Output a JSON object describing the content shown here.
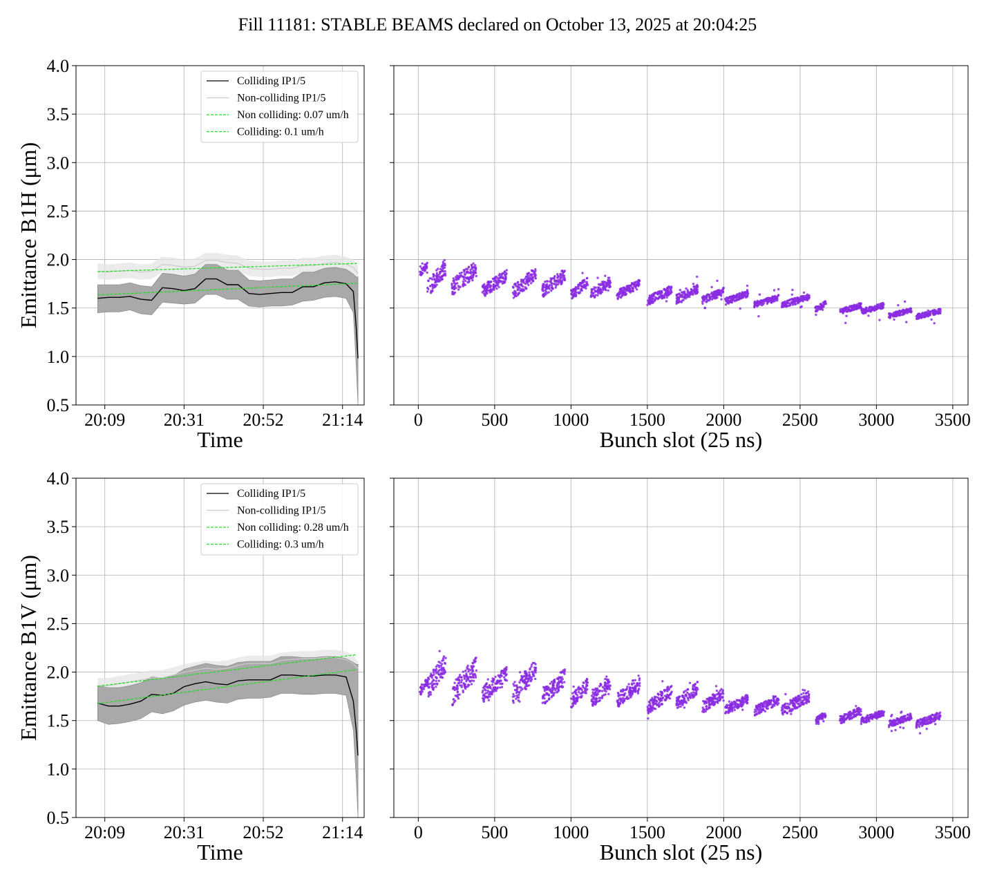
{
  "figure": {
    "title": "Fill 11181: STABLE BEAMS declared on October 13, 2025 at 20:04:25"
  },
  "colors": {
    "colliding": "#000000",
    "noncolliding": "#cccccc",
    "fit": "#22dd22",
    "band_colliding": "#a9a9a9",
    "band_noncolliding": "#e4e4e4",
    "scatter": "#8a2be2",
    "grid": "#b0b0b0"
  },
  "chart_data": [
    {
      "id": "b1h-time",
      "type": "line",
      "xlabel": "Time",
      "ylabel": "Emittance B1H (μm)",
      "ylim": [
        0.5,
        4.0
      ],
      "yticks": [
        "0.5",
        "1.0",
        "1.5",
        "2.0",
        "2.5",
        "3.0",
        "3.5",
        "4.0"
      ],
      "xticks": [
        "20:09",
        "20:31",
        "20:52",
        "21:14"
      ],
      "grid": true,
      "legend_placement": "top-right",
      "legend": [
        "Colliding IP1/5",
        "Non-colliding IP1/5",
        "Non colliding: 0.07 um/h",
        "Colliding: 0.1 um/h"
      ],
      "time_x": [
        0,
        3,
        6,
        9,
        12,
        15,
        18,
        21,
        24,
        27,
        30,
        33,
        36,
        39,
        42,
        45,
        48,
        51,
        54,
        57,
        60,
        63,
        66,
        69,
        71,
        71.8,
        72.3
      ],
      "colliding_mean": [
        1.6,
        1.61,
        1.61,
        1.62,
        1.59,
        1.58,
        1.71,
        1.7,
        1.68,
        1.7,
        1.8,
        1.8,
        1.74,
        1.74,
        1.65,
        1.64,
        1.65,
        1.66,
        1.66,
        1.72,
        1.72,
        1.76,
        1.77,
        1.75,
        1.67,
        1.3,
        0.98
      ],
      "colliding_band_low": [
        1.45,
        1.46,
        1.46,
        1.48,
        1.44,
        1.43,
        1.56,
        1.55,
        1.54,
        1.55,
        1.64,
        1.64,
        1.59,
        1.59,
        1.52,
        1.51,
        1.52,
        1.52,
        1.53,
        1.57,
        1.58,
        1.61,
        1.62,
        1.6,
        1.45,
        0.9,
        0.5
      ],
      "colliding_band_high": [
        1.74,
        1.74,
        1.74,
        1.76,
        1.73,
        1.72,
        1.86,
        1.85,
        1.83,
        1.85,
        1.95,
        1.95,
        1.89,
        1.89,
        1.79,
        1.78,
        1.79,
        1.8,
        1.8,
        1.87,
        1.87,
        1.91,
        1.92,
        1.9,
        1.85,
        1.82,
        1.82
      ],
      "noncolliding_mean": [
        1.88,
        1.87,
        1.88,
        1.89,
        1.87,
        1.88,
        1.95,
        1.94,
        1.92,
        1.93,
        1.99,
        1.99,
        1.97,
        1.96,
        1.91,
        1.9,
        1.9,
        1.91,
        1.91,
        1.94,
        1.94,
        1.96,
        1.97,
        1.95,
        1.92,
        1.88,
        1.85
      ],
      "noncolliding_band_low": [
        1.8,
        1.79,
        1.8,
        1.81,
        1.79,
        1.8,
        1.87,
        1.86,
        1.84,
        1.85,
        1.91,
        1.91,
        1.89,
        1.88,
        1.83,
        1.82,
        1.82,
        1.83,
        1.83,
        1.86,
        1.86,
        1.88,
        1.89,
        1.87,
        1.84,
        1.8,
        1.78
      ],
      "noncolliding_band_high": [
        1.96,
        1.95,
        1.96,
        1.97,
        1.95,
        1.96,
        2.03,
        2.02,
        2.0,
        2.01,
        2.07,
        2.07,
        2.05,
        2.04,
        1.99,
        1.98,
        1.98,
        1.99,
        1.99,
        2.02,
        2.02,
        2.04,
        2.05,
        2.03,
        2.0,
        1.96,
        1.93
      ],
      "fit_noncolliding": {
        "x": [
          0,
          72
        ],
        "y": [
          1.875,
          1.96
        ]
      },
      "fit_colliding": {
        "x": [
          0,
          72
        ],
        "y": [
          1.635,
          1.755
        ]
      }
    },
    {
      "id": "b1h-bunch",
      "type": "scatter",
      "xlabel": "Bunch slot (25 ns)",
      "ylabel": "",
      "xlim": [
        -160,
        3600
      ],
      "ylim": [
        0.5,
        4.0
      ],
      "xticks": [
        0,
        500,
        1000,
        1500,
        2000,
        2500,
        3000,
        3500
      ],
      "grid": true,
      "trains": [
        {
          "start": 10,
          "end": 60,
          "top": 1.96,
          "bot": 1.8
        },
        {
          "start": 60,
          "end": 180,
          "top": 1.96,
          "bot": 1.55
        },
        {
          "start": 220,
          "end": 380,
          "top": 1.95,
          "bot": 1.58
        },
        {
          "start": 420,
          "end": 580,
          "top": 1.86,
          "bot": 1.57
        },
        {
          "start": 620,
          "end": 770,
          "top": 1.88,
          "bot": 1.55
        },
        {
          "start": 810,
          "end": 960,
          "top": 1.87,
          "bot": 1.57
        },
        {
          "start": 1000,
          "end": 1110,
          "top": 1.79,
          "bot": 1.55
        },
        {
          "start": 1130,
          "end": 1260,
          "top": 1.8,
          "bot": 1.55
        },
        {
          "start": 1300,
          "end": 1450,
          "top": 1.77,
          "bot": 1.56
        },
        {
          "start": 1500,
          "end": 1660,
          "top": 1.71,
          "bot": 1.5
        },
        {
          "start": 1690,
          "end": 1830,
          "top": 1.72,
          "bot": 1.52
        },
        {
          "start": 1860,
          "end": 2000,
          "top": 1.69,
          "bot": 1.52
        },
        {
          "start": 2010,
          "end": 2160,
          "top": 1.67,
          "bot": 1.51
        },
        {
          "start": 2200,
          "end": 2360,
          "top": 1.62,
          "bot": 1.49
        },
        {
          "start": 2380,
          "end": 2560,
          "top": 1.63,
          "bot": 1.48
        },
        {
          "start": 2600,
          "end": 2670,
          "top": 1.56,
          "bot": 1.44
        },
        {
          "start": 2760,
          "end": 2900,
          "top": 1.54,
          "bot": 1.42
        },
        {
          "start": 2900,
          "end": 3050,
          "top": 1.54,
          "bot": 1.42
        },
        {
          "start": 3080,
          "end": 3230,
          "top": 1.49,
          "bot": 1.38
        },
        {
          "start": 3260,
          "end": 3420,
          "top": 1.48,
          "bot": 1.37
        }
      ]
    },
    {
      "id": "b1v-time",
      "type": "line",
      "xlabel": "Time",
      "ylabel": "Emittance B1V (μm)",
      "ylim": [
        0.5,
        4.0
      ],
      "yticks": [
        "0.5",
        "1.0",
        "1.5",
        "2.0",
        "2.5",
        "3.0",
        "3.5",
        "4.0"
      ],
      "xticks": [
        "20:09",
        "20:31",
        "20:52",
        "21:14"
      ],
      "grid": true,
      "legend_placement": "top-right",
      "legend": [
        "Colliding IP1/5",
        "Non-colliding IP1/5",
        "Non colliding: 0.28 um/h",
        "Colliding: 0.3 um/h"
      ],
      "time_x": [
        0,
        3,
        6,
        9,
        12,
        15,
        18,
        21,
        24,
        27,
        30,
        33,
        36,
        39,
        42,
        45,
        48,
        51,
        54,
        57,
        60,
        63,
        66,
        69,
        71,
        71.8,
        72.3
      ],
      "colliding_mean": [
        1.68,
        1.65,
        1.65,
        1.67,
        1.7,
        1.77,
        1.76,
        1.78,
        1.85,
        1.88,
        1.9,
        1.88,
        1.87,
        1.91,
        1.92,
        1.92,
        1.92,
        1.97,
        1.97,
        1.96,
        1.96,
        1.97,
        1.97,
        1.95,
        1.7,
        1.4,
        1.14
      ],
      "colliding_band_low": [
        1.5,
        1.46,
        1.47,
        1.49,
        1.52,
        1.59,
        1.57,
        1.6,
        1.66,
        1.69,
        1.71,
        1.69,
        1.68,
        1.72,
        1.73,
        1.73,
        1.74,
        1.78,
        1.78,
        1.77,
        1.77,
        1.78,
        1.78,
        1.76,
        1.4,
        0.9,
        0.5
      ],
      "colliding_band_high": [
        1.86,
        1.84,
        1.84,
        1.86,
        1.89,
        1.95,
        1.94,
        1.96,
        2.03,
        2.06,
        2.09,
        2.07,
        2.06,
        2.1,
        2.11,
        2.11,
        2.11,
        2.16,
        2.16,
        2.15,
        2.15,
        2.16,
        2.16,
        2.14,
        2.1,
        2.08,
        2.08
      ],
      "noncolliding_mean": [
        1.86,
        1.86,
        1.88,
        1.9,
        1.92,
        1.94,
        1.94,
        1.97,
        2.0,
        2.02,
        2.04,
        2.03,
        2.04,
        2.07,
        2.09,
        2.09,
        2.09,
        2.12,
        2.13,
        2.14,
        2.14,
        2.15,
        2.15,
        2.13,
        2.09,
        2.05,
        2.04
      ],
      "noncolliding_band_low": [
        1.78,
        1.78,
        1.8,
        1.82,
        1.84,
        1.86,
        1.86,
        1.89,
        1.92,
        1.94,
        1.96,
        1.95,
        1.96,
        1.99,
        2.01,
        2.01,
        2.01,
        2.04,
        2.05,
        2.06,
        2.06,
        2.07,
        2.07,
        2.05,
        2.01,
        1.97,
        1.96
      ],
      "noncolliding_band_high": [
        1.94,
        1.94,
        1.96,
        1.98,
        2.0,
        2.02,
        2.02,
        2.05,
        2.08,
        2.1,
        2.12,
        2.11,
        2.12,
        2.15,
        2.17,
        2.17,
        2.17,
        2.2,
        2.21,
        2.22,
        2.22,
        2.23,
        2.23,
        2.21,
        2.17,
        2.13,
        2.12
      ],
      "fit_noncolliding": {
        "x": [
          0,
          72
        ],
        "y": [
          1.855,
          2.18
        ]
      },
      "fit_colliding": {
        "x": [
          0,
          72
        ],
        "y": [
          1.675,
          2.025
        ]
      }
    },
    {
      "id": "b1v-bunch",
      "type": "scatter",
      "xlabel": "Bunch slot (25 ns)",
      "ylabel": "",
      "xlim": [
        -160,
        3600
      ],
      "ylim": [
        0.5,
        4.0
      ],
      "xticks": [
        0,
        500,
        1000,
        1500,
        2000,
        2500,
        3000,
        3500
      ],
      "grid": true,
      "trains": [
        {
          "start": 10,
          "end": 60,
          "top": 1.92,
          "bot": 1.72
        },
        {
          "start": 60,
          "end": 180,
          "top": 2.15,
          "bot": 1.65
        },
        {
          "start": 220,
          "end": 380,
          "top": 2.1,
          "bot": 1.58
        },
        {
          "start": 420,
          "end": 580,
          "top": 2.01,
          "bot": 1.63
        },
        {
          "start": 620,
          "end": 770,
          "top": 2.07,
          "bot": 1.62
        },
        {
          "start": 810,
          "end": 960,
          "top": 1.99,
          "bot": 1.6
        },
        {
          "start": 1000,
          "end": 1110,
          "top": 1.9,
          "bot": 1.58
        },
        {
          "start": 1130,
          "end": 1260,
          "top": 1.95,
          "bot": 1.56
        },
        {
          "start": 1300,
          "end": 1450,
          "top": 1.93,
          "bot": 1.58
        },
        {
          "start": 1500,
          "end": 1660,
          "top": 1.84,
          "bot": 1.52
        },
        {
          "start": 1690,
          "end": 1830,
          "top": 1.87,
          "bot": 1.56
        },
        {
          "start": 1860,
          "end": 2000,
          "top": 1.81,
          "bot": 1.54
        },
        {
          "start": 2010,
          "end": 2160,
          "top": 1.75,
          "bot": 1.53
        },
        {
          "start": 2200,
          "end": 2360,
          "top": 1.74,
          "bot": 1.52
        },
        {
          "start": 2380,
          "end": 2560,
          "top": 1.78,
          "bot": 1.51
        },
        {
          "start": 2600,
          "end": 2670,
          "top": 1.59,
          "bot": 1.44
        },
        {
          "start": 2760,
          "end": 2900,
          "top": 1.62,
          "bot": 1.44
        },
        {
          "start": 2900,
          "end": 3050,
          "top": 1.6,
          "bot": 1.44
        },
        {
          "start": 3080,
          "end": 3230,
          "top": 1.56,
          "bot": 1.41
        },
        {
          "start": 3260,
          "end": 3420,
          "top": 1.57,
          "bot": 1.4
        }
      ]
    }
  ]
}
